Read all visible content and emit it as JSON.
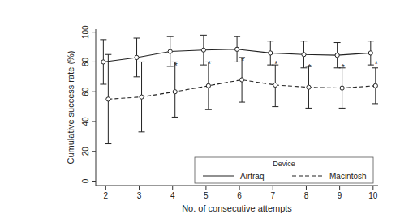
{
  "chart_data": {
    "type": "line",
    "x_label": "No. of consecutive attempts",
    "y_label": "Cumulative success rate (%)",
    "x": [
      2,
      3,
      4,
      5,
      6,
      7,
      8,
      9,
      10
    ],
    "xlim": [
      1.7,
      10.15
    ],
    "xticks": [
      2,
      3,
      4,
      5,
      6,
      7,
      8,
      9,
      10
    ],
    "ylim": [
      -3,
      102
    ],
    "yticks": [
      0,
      20,
      40,
      60,
      80,
      100
    ],
    "legend_title": "Device",
    "legend": "bottom-right",
    "series": [
      {
        "name": "Airtraq",
        "color": "#222222",
        "line_style": "solid",
        "marker": "circle",
        "values": [
          80,
          83,
          87,
          88,
          88.5,
          86,
          85,
          84.5,
          86
        ],
        "lower": [
          65,
          70,
          77,
          78,
          80,
          78,
          76,
          76,
          78
        ],
        "upper": [
          95,
          96,
          97,
          98,
          97,
          94,
          94,
          93,
          94
        ]
      },
      {
        "name": "Macintosh",
        "color": "#222222",
        "line_style": "dashed",
        "marker": "circle",
        "values": [
          55,
          56.5,
          60,
          64,
          68,
          64.5,
          63,
          62.5,
          64
        ],
        "lower": [
          25,
          33,
          43,
          48,
          53,
          50,
          49,
          49,
          52
        ],
        "upper": [
          85,
          80,
          80,
          80,
          83,
          78,
          77,
          76,
          76
        ]
      }
    ],
    "significance": [
      null,
      null,
      "*",
      "*",
      "*",
      "*",
      "*",
      "*",
      "*"
    ]
  }
}
